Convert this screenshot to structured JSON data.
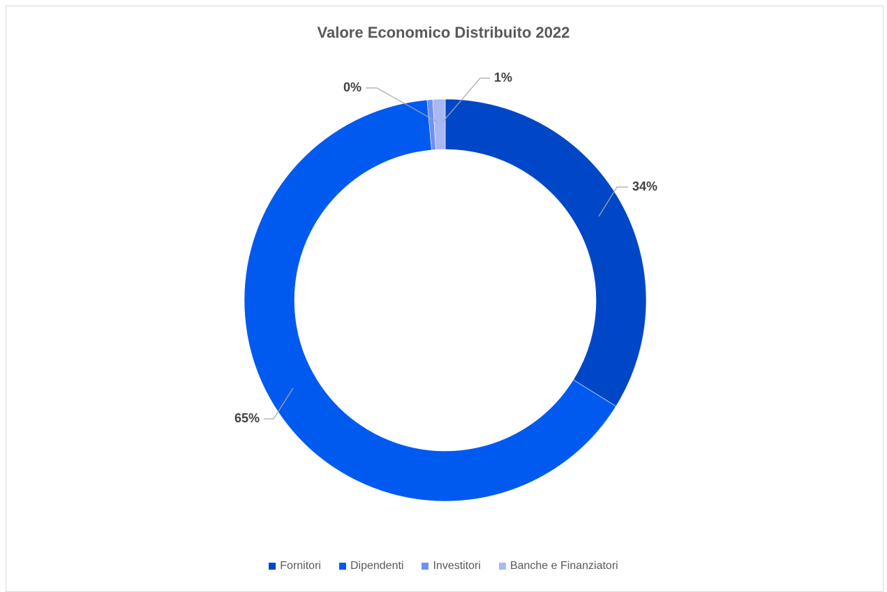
{
  "chart_data": {
    "type": "pie",
    "variant": "doughnut",
    "title": "Valore Economico Distribuito 2022",
    "categories": [
      "Fornitori",
      "Dipendenti",
      "Investitori",
      "Banche e Finanziatori"
    ],
    "values": [
      34,
      65,
      0,
      1
    ],
    "data_labels": [
      "34%",
      "65%",
      "0%",
      "1%"
    ],
    "colors": [
      "#0047c8",
      "#005af0",
      "#6e8ff5",
      "#aab8f2"
    ],
    "legend_position": "bottom"
  }
}
